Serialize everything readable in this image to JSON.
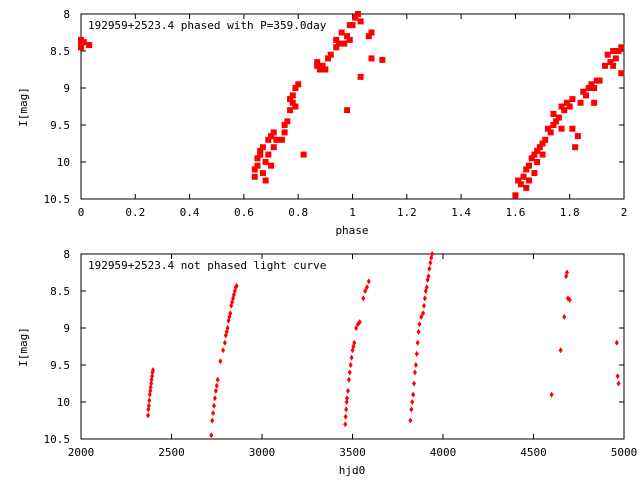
{
  "chart_data": [
    {
      "type": "scatter",
      "title": "192959+2523.4 phased with P=359.0day",
      "xlabel": "phase",
      "ylabel": "I[mag]",
      "xlim": [
        0,
        2
      ],
      "ylim": [
        10.5,
        8
      ],
      "y_inverted": true,
      "grid": false,
      "marker": "filled square",
      "color": "#ff0000",
      "x_ticks": [
        "0",
        "0.2",
        "0.4",
        "0.6",
        "0.8",
        "1",
        "1.2",
        "1.4",
        "1.6",
        "1.8",
        "2"
      ],
      "y_ticks": [
        "8",
        "8.5",
        "9",
        "9.5",
        "10",
        "10.5"
      ],
      "points": [
        [
          0.0,
          8.4
        ],
        [
          0.0,
          8.35
        ],
        [
          0.01,
          8.38
        ],
        [
          0.0,
          8.45
        ],
        [
          0.03,
          8.42
        ],
        [
          0.64,
          10.2
        ],
        [
          0.64,
          10.1
        ],
        [
          0.65,
          10.05
        ],
        [
          0.65,
          9.95
        ],
        [
          0.66,
          9.9
        ],
        [
          0.66,
          9.85
        ],
        [
          0.67,
          10.15
        ],
        [
          0.67,
          9.8
        ],
        [
          0.68,
          10.0
        ],
        [
          0.68,
          10.25
        ],
        [
          0.69,
          9.7
        ],
        [
          0.69,
          9.9
        ],
        [
          0.7,
          9.65
        ],
        [
          0.7,
          10.05
        ],
        [
          0.71,
          9.6
        ],
        [
          0.71,
          9.8
        ],
        [
          0.72,
          9.7
        ],
        [
          0.74,
          9.7
        ],
        [
          0.75,
          9.5
        ],
        [
          0.75,
          9.6
        ],
        [
          0.76,
          9.45
        ],
        [
          0.77,
          9.3
        ],
        [
          0.77,
          9.15
        ],
        [
          0.78,
          9.2
        ],
        [
          0.78,
          9.1
        ],
        [
          0.79,
          9.25
        ],
        [
          0.79,
          9.0
        ],
        [
          0.8,
          8.95
        ],
        [
          0.82,
          9.9
        ],
        [
          0.87,
          8.7
        ],
        [
          0.87,
          8.65
        ],
        [
          0.88,
          8.75
        ],
        [
          0.89,
          8.7
        ],
        [
          0.9,
          8.75
        ],
        [
          0.91,
          8.6
        ],
        [
          0.92,
          8.55
        ],
        [
          0.94,
          8.45
        ],
        [
          0.94,
          8.35
        ],
        [
          0.95,
          8.4
        ],
        [
          0.96,
          8.25
        ],
        [
          0.97,
          8.4
        ],
        [
          0.98,
          8.3
        ],
        [
          0.99,
          8.35
        ],
        [
          0.99,
          8.15
        ],
        [
          0.98,
          9.3
        ],
        [
          1.0,
          8.15
        ],
        [
          1.01,
          8.05
        ],
        [
          1.02,
          8.0
        ],
        [
          1.03,
          8.1
        ],
        [
          1.03,
          8.85
        ],
        [
          1.06,
          8.3
        ],
        [
          1.07,
          8.25
        ],
        [
          1.07,
          8.6
        ],
        [
          1.11,
          8.62
        ],
        [
          1.6,
          10.45
        ],
        [
          1.61,
          10.25
        ],
        [
          1.62,
          10.3
        ],
        [
          1.63,
          10.2
        ],
        [
          1.64,
          10.35
        ],
        [
          1.64,
          10.1
        ],
        [
          1.65,
          10.05
        ],
        [
          1.65,
          10.25
        ],
        [
          1.66,
          9.95
        ],
        [
          1.67,
          10.15
        ],
        [
          1.67,
          9.9
        ],
        [
          1.68,
          9.85
        ],
        [
          1.68,
          10.0
        ],
        [
          1.69,
          9.8
        ],
        [
          1.7,
          9.75
        ],
        [
          1.7,
          9.9
        ],
        [
          1.71,
          9.7
        ],
        [
          1.72,
          9.55
        ],
        [
          1.73,
          9.6
        ],
        [
          1.74,
          9.5
        ],
        [
          1.74,
          9.35
        ],
        [
          1.75,
          9.45
        ],
        [
          1.76,
          9.4
        ],
        [
          1.77,
          9.25
        ],
        [
          1.77,
          9.55
        ],
        [
          1.78,
          9.3
        ],
        [
          1.79,
          9.2
        ],
        [
          1.8,
          9.25
        ],
        [
          1.81,
          9.15
        ],
        [
          1.81,
          9.55
        ],
        [
          1.82,
          9.8
        ],
        [
          1.83,
          9.65
        ],
        [
          1.84,
          9.2
        ],
        [
          1.85,
          9.05
        ],
        [
          1.86,
          9.1
        ],
        [
          1.87,
          9.0
        ],
        [
          1.88,
          8.95
        ],
        [
          1.89,
          9.0
        ],
        [
          1.89,
          9.2
        ],
        [
          1.9,
          8.9
        ],
        [
          1.91,
          8.9
        ],
        [
          1.93,
          8.7
        ],
        [
          1.94,
          8.55
        ],
        [
          1.95,
          8.65
        ],
        [
          1.96,
          8.5
        ],
        [
          1.96,
          8.7
        ],
        [
          1.97,
          8.6
        ],
        [
          1.98,
          8.5
        ],
        [
          1.99,
          8.45
        ],
        [
          1.99,
          8.8
        ]
      ]
    },
    {
      "type": "scatter",
      "title": "192959+2523.4 not phased light curve",
      "xlabel": "hjd0",
      "ylabel": "I[mag]",
      "xlim": [
        2000,
        5000
      ],
      "ylim": [
        10.5,
        8
      ],
      "y_inverted": true,
      "grid": false,
      "marker": "small filled diamond",
      "color": "#ff0000",
      "x_ticks": [
        "2000",
        "2500",
        "3000",
        "3500",
        "4000",
        "4500",
        "5000"
      ],
      "y_ticks": [
        "8",
        "8.5",
        "9",
        "9.5",
        "10",
        "10.5"
      ],
      "points": [
        [
          2370,
          10.18
        ],
        [
          2372,
          10.1
        ],
        [
          2375,
          10.05
        ],
        [
          2378,
          9.98
        ],
        [
          2380,
          9.9
        ],
        [
          2383,
          9.85
        ],
        [
          2385,
          9.8
        ],
        [
          2388,
          9.75
        ],
        [
          2390,
          9.7
        ],
        [
          2393,
          9.65
        ],
        [
          2395,
          9.6
        ],
        [
          2398,
          9.57
        ],
        [
          2720,
          10.45
        ],
        [
          2725,
          10.25
        ],
        [
          2730,
          10.15
        ],
        [
          2735,
          10.05
        ],
        [
          2740,
          9.95
        ],
        [
          2745,
          9.85
        ],
        [
          2750,
          9.78
        ],
        [
          2755,
          9.7
        ],
        [
          2770,
          9.45
        ],
        [
          2785,
          9.3
        ],
        [
          2795,
          9.2
        ],
        [
          2800,
          9.1
        ],
        [
          2805,
          9.05
        ],
        [
          2810,
          9.0
        ],
        [
          2815,
          8.9
        ],
        [
          2820,
          8.85
        ],
        [
          2825,
          8.8
        ],
        [
          2830,
          8.7
        ],
        [
          2835,
          8.65
        ],
        [
          2840,
          8.6
        ],
        [
          2845,
          8.55
        ],
        [
          2850,
          8.5
        ],
        [
          2855,
          8.45
        ],
        [
          2860,
          8.43
        ],
        [
          3460,
          10.3
        ],
        [
          3462,
          10.2
        ],
        [
          3465,
          10.1
        ],
        [
          3468,
          10.0
        ],
        [
          3470,
          9.95
        ],
        [
          3475,
          9.85
        ],
        [
          3480,
          9.7
        ],
        [
          3485,
          9.6
        ],
        [
          3490,
          9.5
        ],
        [
          3495,
          9.4
        ],
        [
          3500,
          9.3
        ],
        [
          3505,
          9.25
        ],
        [
          3510,
          9.2
        ],
        [
          3520,
          9.0
        ],
        [
          3530,
          8.95
        ],
        [
          3540,
          8.92
        ],
        [
          3560,
          8.6
        ],
        [
          3570,
          8.5
        ],
        [
          3580,
          8.45
        ],
        [
          3590,
          8.37
        ],
        [
          3820,
          10.25
        ],
        [
          3825,
          10.1
        ],
        [
          3830,
          10.0
        ],
        [
          3835,
          9.9
        ],
        [
          3840,
          9.75
        ],
        [
          3845,
          9.6
        ],
        [
          3850,
          9.5
        ],
        [
          3855,
          9.35
        ],
        [
          3860,
          9.2
        ],
        [
          3865,
          9.05
        ],
        [
          3870,
          8.95
        ],
        [
          3880,
          8.85
        ],
        [
          3890,
          8.8
        ],
        [
          3895,
          8.7
        ],
        [
          3900,
          8.6
        ],
        [
          3905,
          8.5
        ],
        [
          3910,
          8.45
        ],
        [
          3915,
          8.35
        ],
        [
          3920,
          8.3
        ],
        [
          3925,
          8.2
        ],
        [
          3930,
          8.12
        ],
        [
          3935,
          8.05
        ],
        [
          3940,
          8.0
        ],
        [
          4600,
          9.9
        ],
        [
          4650,
          9.3
        ],
        [
          4670,
          8.85
        ],
        [
          4680,
          8.3
        ],
        [
          4685,
          8.25
        ],
        [
          4690,
          8.6
        ],
        [
          4700,
          8.62
        ],
        [
          4960,
          9.2
        ],
        [
          4965,
          9.65
        ],
        [
          4970,
          9.75
        ]
      ]
    }
  ]
}
